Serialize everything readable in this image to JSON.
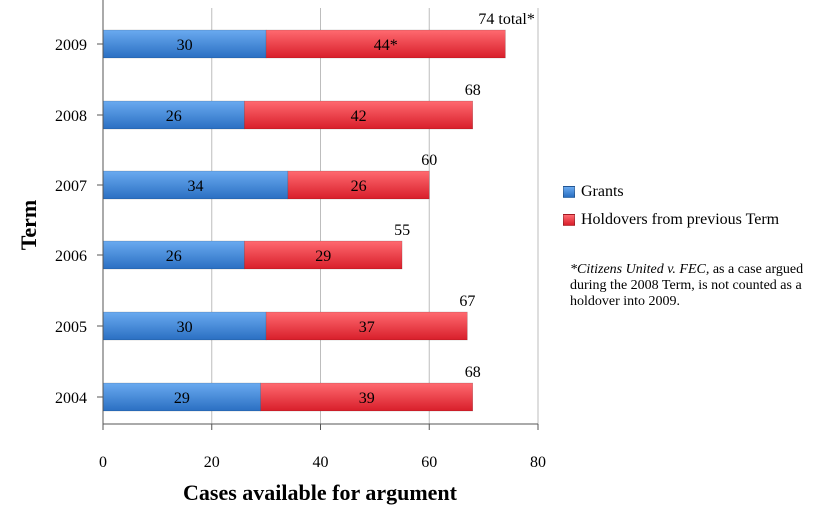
{
  "chart_data": {
    "type": "bar",
    "orientation": "horizontal",
    "stacked": true,
    "categories": [
      "2009",
      "2008",
      "2007",
      "2006",
      "2005",
      "2004"
    ],
    "series": [
      {
        "name": "Grants",
        "color": "#3a86d6",
        "values": [
          30,
          26,
          34,
          26,
          30,
          29
        ]
      },
      {
        "name": "Holdovers from previous Term",
        "color": "#ee3340",
        "values": [
          44,
          42,
          26,
          29,
          37,
          39
        ]
      }
    ],
    "segment_labels": [
      [
        "30",
        "44*"
      ],
      [
        "26",
        "42"
      ],
      [
        "34",
        "26"
      ],
      [
        "26",
        "29"
      ],
      [
        "30",
        "37"
      ],
      [
        "29",
        "39"
      ]
    ],
    "totals": [
      "74 total*",
      "68",
      "60",
      "55",
      "67",
      "68"
    ],
    "xlabel": "Cases available for argument",
    "ylabel": "Term",
    "xlim": [
      0,
      80
    ],
    "xticks": [
      "0",
      "20",
      "40",
      "60",
      "80"
    ],
    "grid": "vertical",
    "legend_position": "right"
  },
  "footnote": {
    "case_name": "*Citizens United v. FEC,",
    "text": " as a case argued during the 2008 Term, is not counted as a holdover into 2009."
  }
}
